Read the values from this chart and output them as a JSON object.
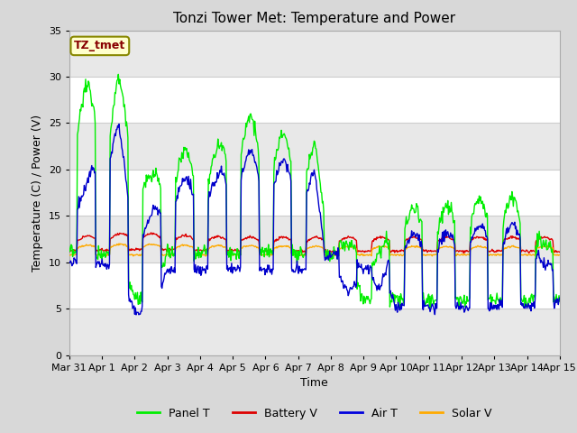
{
  "title": "Tonzi Tower Met: Temperature and Power",
  "xlabel": "Time",
  "ylabel": "Temperature (C) / Power (V)",
  "ylim": [
    0,
    35
  ],
  "yticks": [
    0,
    5,
    10,
    15,
    20,
    25,
    30,
    35
  ],
  "xtick_labels": [
    "Mar 31",
    "Apr 1",
    "Apr 2",
    "Apr 3",
    "Apr 4",
    "Apr 5",
    "Apr 6",
    "Apr 7",
    "Apr 8",
    "Apr 9",
    "Apr 10",
    "Apr 11",
    "Apr 12",
    "Apr 13",
    "Apr 14",
    "Apr 15"
  ],
  "legend_labels": [
    "Panel T",
    "Battery V",
    "Air T",
    "Solar V"
  ],
  "legend_colors": [
    "#00ee00",
    "#dd0000",
    "#0000dd",
    "#ffaa00"
  ],
  "line_colors": {
    "panel_t": "#00ee00",
    "battery_v": "#dd0000",
    "air_t": "#0000cc",
    "solar_v": "#ffaa00"
  },
  "annotation_text": "TZ_tmet",
  "annotation_bg": "#ffffcc",
  "annotation_border": "#888800",
  "annotation_text_color": "#880000",
  "title_fontsize": 11,
  "axis_label_fontsize": 9,
  "tick_fontsize": 8,
  "legend_fontsize": 9
}
